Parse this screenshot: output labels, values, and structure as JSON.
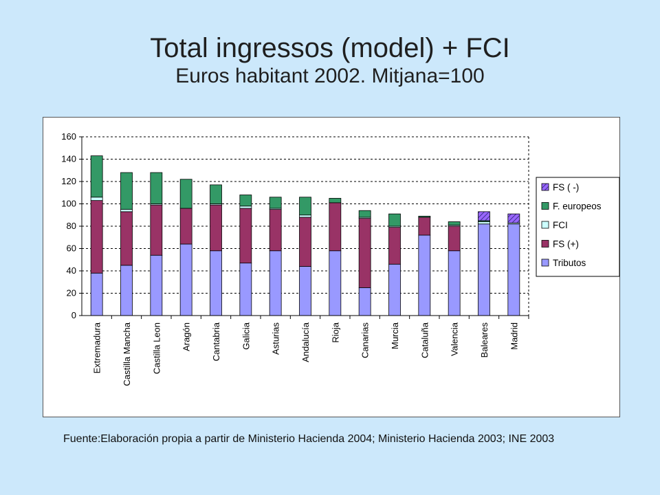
{
  "title": "Total ingressos (model) + FCI",
  "subtitle": "Euros habitant 2002. Mitjana=100",
  "source": "Fuente:Elaboración propia a partir de Ministerio Hacienda 2004; Ministerio Hacienda 2003; INE 2003",
  "colors": {
    "Tributos": "#9999ff",
    "FS (+)": "#993366",
    "FCI": "#ccffff",
    "F. europeos": "#339966",
    "FS ( -)": "#9966ff",
    "background": "#cce8fb"
  },
  "chart_data": {
    "type": "bar",
    "stacked": true,
    "ylim": [
      0,
      160
    ],
    "yticks": [
      0,
      20,
      40,
      60,
      80,
      100,
      120,
      140,
      160
    ],
    "grid": true,
    "legend_position": "right",
    "categories": [
      "Extremadura",
      "Castilla Mancha",
      "Castilla Leon",
      "Aragón",
      "Cantabria",
      "Galicia",
      "Asturias",
      "Andalucía",
      "Rioja",
      "Canarias",
      "Murcia",
      "Cataluña",
      "Valencia",
      "Baleares",
      "Madrid"
    ],
    "series": [
      {
        "name": "Tributos",
        "values": [
          38,
          45,
          54,
          64,
          58,
          47,
          58,
          44,
          58,
          25,
          46,
          72,
          58,
          82,
          82
        ]
      },
      {
        "name": "FS (+)",
        "values": [
          65,
          48,
          45,
          32,
          41,
          49,
          37,
          44,
          43,
          62,
          33,
          16,
          22,
          0,
          0
        ]
      },
      {
        "name": "FCI",
        "values": [
          3,
          2,
          1,
          0,
          1,
          2,
          1,
          2,
          0,
          1,
          1,
          0,
          1,
          2,
          1
        ]
      },
      {
        "name": "F. europeos",
        "values": [
          37,
          33,
          28,
          26,
          17,
          10,
          10,
          16,
          4,
          6,
          11,
          1,
          3,
          1,
          0
        ]
      },
      {
        "name": "FS ( -)",
        "values": [
          0,
          0,
          0,
          0,
          0,
          0,
          0,
          0,
          0,
          0,
          0,
          0,
          0,
          8,
          8
        ]
      }
    ],
    "legend": [
      "FS ( -)",
      "F. europeos",
      "FCI",
      "FS (+)",
      "Tributos"
    ]
  }
}
